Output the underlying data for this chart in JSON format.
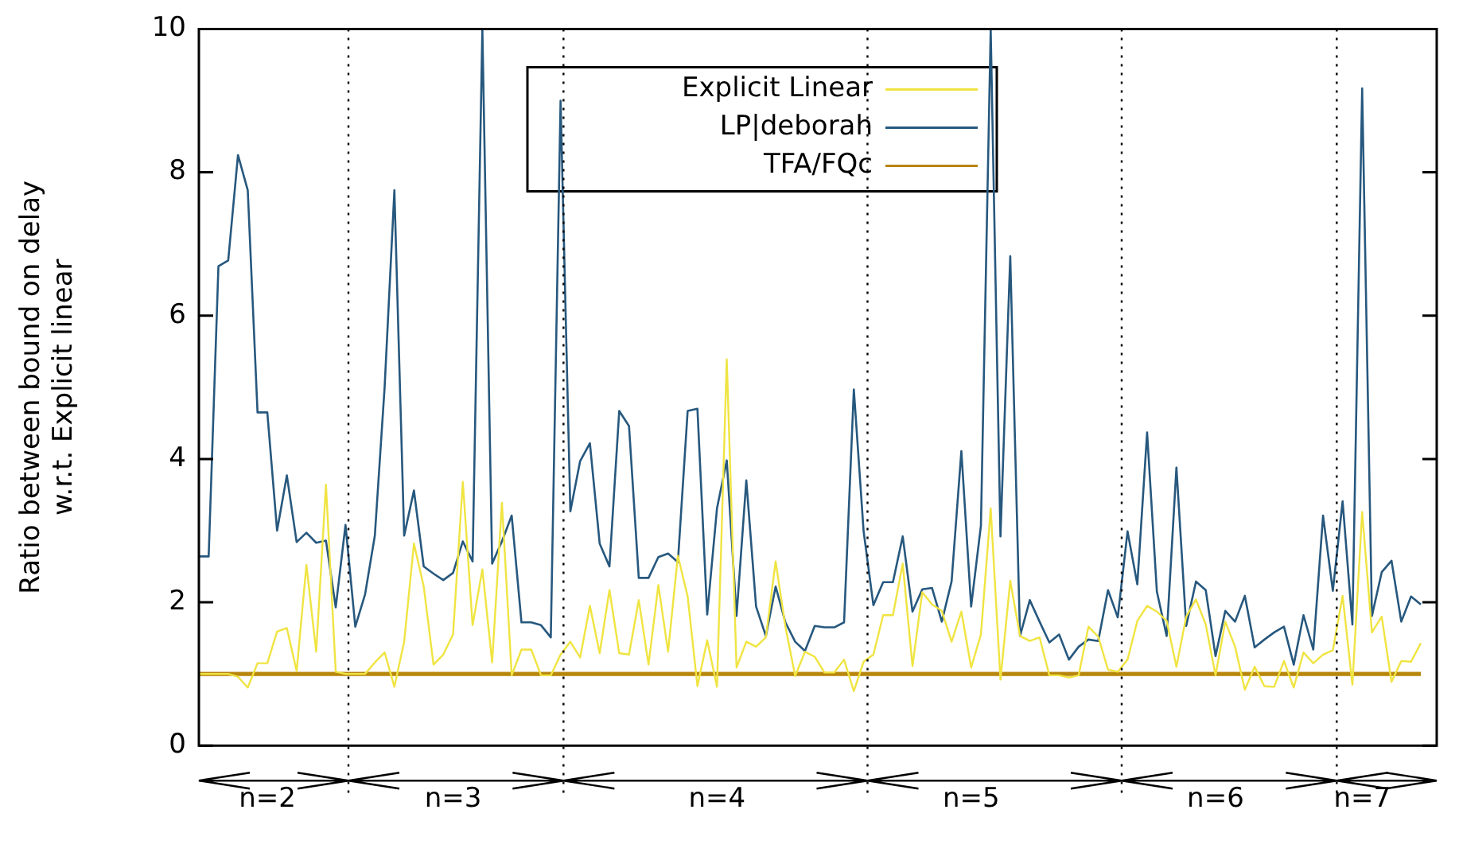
{
  "chart_data": {
    "type": "line",
    "ylabel": "Ratio between bound on delay\nw.r.t. Explicit linear",
    "categories": [
      null,
      null,
      null,
      null,
      null,
      null,
      null,
      "n=2",
      null,
      null,
      null,
      null,
      null,
      null,
      null,
      null,
      null,
      null,
      null,
      null,
      null,
      null,
      null,
      null,
      null,
      null,
      "n=3",
      null,
      null,
      null,
      null,
      null,
      null,
      null,
      null,
      null,
      null,
      null,
      null,
      null,
      null,
      null,
      null,
      null,
      null,
      null,
      null,
      null,
      null,
      null,
      null,
      null,
      null,
      "n=4",
      null,
      null,
      null,
      null,
      null,
      null,
      null,
      null,
      null,
      null,
      null,
      null,
      null,
      null,
      null,
      null,
      null,
      null,
      null,
      null,
      null,
      null,
      null,
      null,
      null,
      "n=5",
      null,
      null,
      null,
      null,
      null,
      null,
      null,
      null,
      null,
      null,
      null,
      null,
      null,
      null,
      null,
      null,
      null,
      null,
      null,
      null,
      null,
      null,
      null,
      null,
      "n=6",
      null,
      null,
      null,
      null,
      null,
      null,
      null,
      null,
      null,
      null,
      null,
      null,
      null,
      null,
      "n=7",
      null,
      null,
      null,
      null,
      null,
      null
    ],
    "series": [
      {
        "name": "Explicit Linear",
        "color": "#f0e442",
        "values": [
          1.0,
          1.0,
          1.0,
          1.0,
          0.96,
          0.81,
          1.15,
          1.15,
          1.59,
          1.64,
          1.04,
          2.52,
          1.31,
          3.64,
          1.03,
          1.0,
          1.0,
          1.0,
          1.16,
          1.3,
          0.82,
          1.45,
          2.82,
          2.22,
          1.13,
          1.27,
          1.55,
          3.68,
          1.68,
          2.46,
          1.16,
          3.39,
          0.98,
          1.34,
          1.34,
          0.98,
          0.98,
          1.27,
          1.45,
          1.23,
          1.95,
          1.29,
          2.17,
          1.29,
          1.27,
          2.03,
          1.13,
          2.24,
          1.31,
          2.65,
          2.08,
          0.83,
          1.47,
          0.82,
          5.39,
          1.09,
          1.45,
          1.38,
          1.51,
          2.57,
          1.66,
          0.97,
          1.31,
          1.24,
          1.02,
          1.02,
          1.2,
          0.76,
          1.17,
          1.27,
          1.82,
          1.82,
          2.54,
          1.11,
          2.14,
          1.97,
          1.88,
          1.45,
          1.87,
          1.09,
          1.55,
          3.31,
          0.92,
          2.3,
          1.53,
          1.46,
          1.51,
          0.98,
          0.98,
          0.95,
          0.98,
          1.66,
          1.52,
          1.06,
          1.03,
          1.2,
          1.74,
          1.95,
          1.87,
          1.74,
          1.1,
          1.8,
          2.04,
          1.69,
          0.98,
          1.73,
          1.38,
          0.78,
          1.1,
          0.83,
          0.82,
          1.18,
          0.81,
          1.3,
          1.15,
          1.27,
          1.33,
          2.09,
          0.85,
          3.26,
          1.58,
          1.8,
          0.89,
          1.18,
          1.17,
          1.43
        ]
      },
      {
        "name": "LP|deborah",
        "color": "#27587e",
        "values": [
          2.64,
          2.64,
          6.69,
          6.77,
          8.24,
          7.75,
          4.65,
          4.65,
          3.0,
          3.77,
          2.84,
          2.97,
          2.83,
          2.86,
          1.93,
          3.08,
          1.66,
          2.11,
          2.93,
          5.0,
          7.75,
          2.93,
          3.56,
          2.5,
          2.4,
          2.31,
          2.41,
          2.85,
          2.57,
          10,
          2.54,
          2.85,
          3.21,
          1.72,
          1.72,
          1.68,
          1.51,
          9.0,
          3.27,
          3.97,
          4.22,
          2.82,
          2.5,
          4.67,
          4.46,
          2.34,
          2.34,
          2.63,
          2.68,
          2.56,
          4.67,
          4.7,
          1.83,
          3.31,
          3.98,
          1.81,
          3.7,
          1.94,
          1.53,
          2.22,
          1.72,
          1.45,
          1.32,
          1.67,
          1.65,
          1.65,
          1.72,
          4.97,
          2.99,
          1.96,
          2.28,
          2.28,
          2.92,
          1.87,
          2.18,
          2.2,
          1.73,
          2.29,
          4.11,
          1.94,
          3.07,
          10,
          2.92,
          6.83,
          1.53,
          2.03,
          1.73,
          1.44,
          1.55,
          1.2,
          1.38,
          1.48,
          1.46,
          2.17,
          1.79,
          2.99,
          2.25,
          4.37,
          2.15,
          1.53,
          3.88,
          1.67,
          2.29,
          2.17,
          1.25,
          1.88,
          1.73,
          2.09,
          1.37,
          1.48,
          1.58,
          1.66,
          1.13,
          1.82,
          1.34,
          3.21,
          2.16,
          3.41,
          1.69,
          9.17,
          1.81,
          2.42,
          2.58,
          1.73,
          2.08,
          1.97
        ]
      },
      {
        "name": "TFA/FQc",
        "color": "#b8860b",
        "values": [
          1,
          1,
          1,
          1,
          1,
          1,
          1,
          1,
          1,
          1,
          1,
          1,
          1,
          1,
          1,
          1,
          1,
          1,
          1,
          1,
          1,
          1,
          1,
          1,
          1,
          1,
          1,
          1,
          1,
          1,
          1,
          1,
          1,
          1,
          1,
          1,
          1,
          1,
          1,
          1,
          1,
          1,
          1,
          1,
          1,
          1,
          1,
          1,
          1,
          1,
          1,
          1,
          1,
          1,
          1,
          1,
          1,
          1,
          1,
          1,
          1,
          1,
          1,
          1,
          1,
          1,
          1,
          1,
          1,
          1,
          1,
          1,
          1,
          1,
          1,
          1,
          1,
          1,
          1,
          1,
          1,
          1,
          1,
          1,
          1,
          1,
          1,
          1,
          1,
          1,
          1,
          1,
          1,
          1,
          1,
          1,
          1,
          1,
          1,
          1,
          1,
          1,
          1,
          1,
          1,
          1,
          1,
          1,
          1,
          1,
          1,
          1,
          1,
          1,
          1,
          1,
          1,
          1,
          1,
          1,
          1,
          1,
          1,
          1,
          1,
          1
        ]
      }
    ],
    "ylim": [
      0,
      10
    ],
    "yticks": [
      0,
      2,
      4,
      6,
      8,
      10
    ],
    "grid": false,
    "legend": "top",
    "marker": "none",
    "line_style": "solid"
  }
}
